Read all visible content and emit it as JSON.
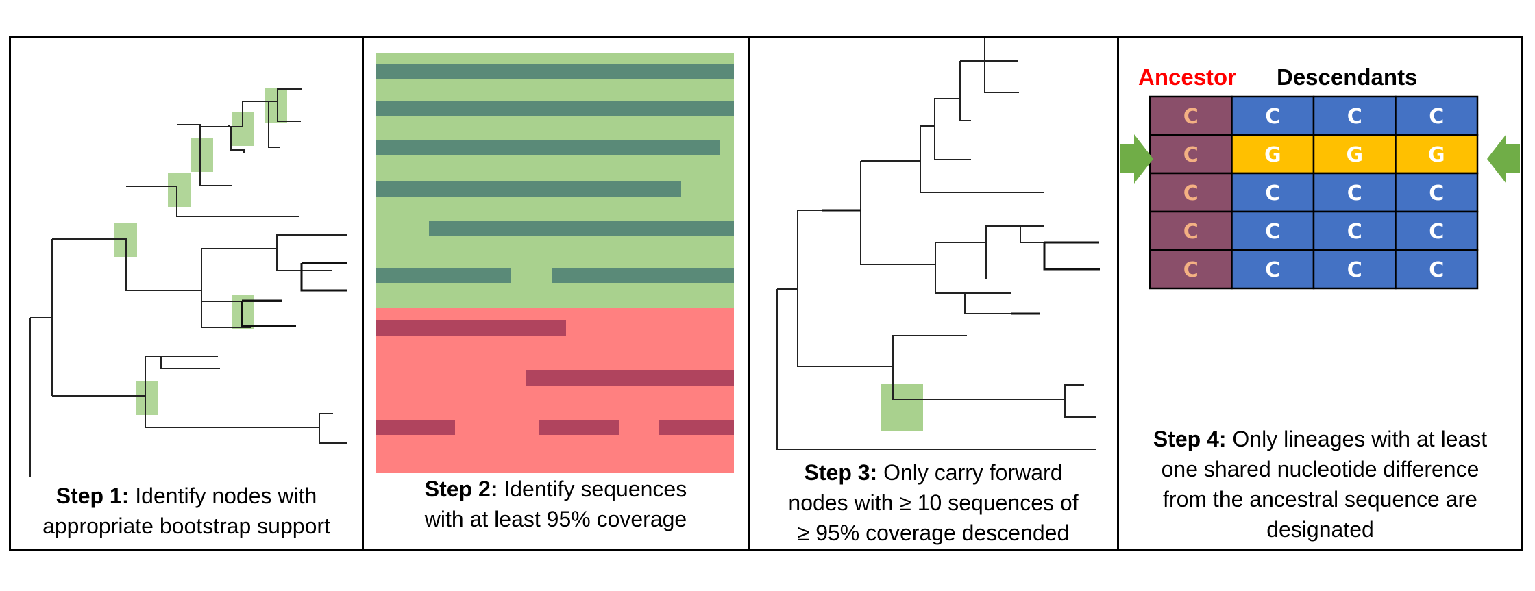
{
  "steps": [
    {
      "label": "Step 1:",
      "text_line1": " Identify nodes with",
      "text_line2": "appropriate bootstrap support"
    },
    {
      "label": "Step 2:",
      "text_line1": " Identify sequences",
      "text_line2": "with at least 95% coverage"
    },
    {
      "label": "Step 3:",
      "text_line1": " Only carry forward",
      "text_line2": "nodes with ≥ 10 sequences of",
      "text_line3": "≥ 95% coverage descended"
    },
    {
      "label": "Step 4:",
      "text_line1": " Only lineages with at least",
      "text_line2": "one shared nucleotide difference",
      "text_line3": "from the ancestral sequence are",
      "text_line4": "designated"
    }
  ],
  "grid": {
    "ancestor_header": "Ancestor",
    "descendants_header": "Descendants",
    "rows": [
      [
        "C",
        "C",
        "C",
        "C"
      ],
      [
        "C",
        "G",
        "G",
        "G"
      ],
      [
        "C",
        "C",
        "C",
        "C"
      ],
      [
        "C",
        "C",
        "C",
        "C"
      ],
      [
        "C",
        "C",
        "C",
        "C"
      ]
    ],
    "colors": {
      "ancestor_bg": "#8a4f6a",
      "ancestor_text": "#f4b183",
      "descendant_bg": "#4472c4",
      "highlight_bg": "#ffc000",
      "arrow": "#70ad47",
      "ancestor_header": "#ff0000"
    }
  },
  "colors": {
    "bootstrap_box": "#a9d18e",
    "good_bg": "#a9d18e",
    "good_bar": "#5a8a78",
    "bad_bg": "#ff8080",
    "bad_bar": "#b0445e"
  }
}
